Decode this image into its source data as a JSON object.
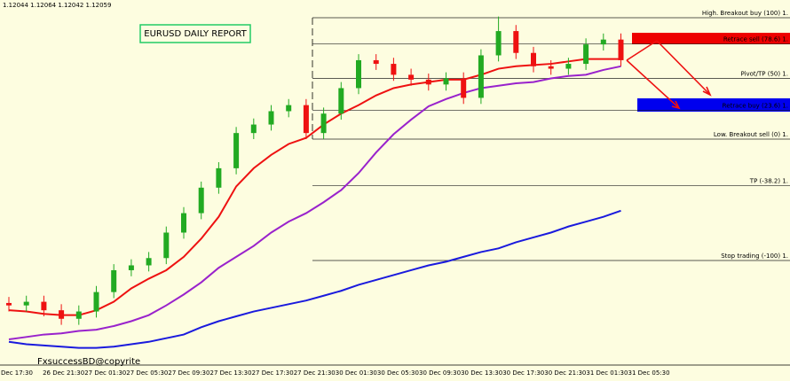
{
  "chart_data": {
    "type": "candlestick",
    "info": "1.12044 1.12064 1.12042 1.12059",
    "title": "EURUSD DAILY REPORT",
    "watermark": "FxsuccessBD@copyrite",
    "ylim": [
      -185.4,
      114.6
    ],
    "bull_color": "#22aa22",
    "bear_color": "#ee1111",
    "ohlc": {
      "open": [
        -135,
        -137,
        -134,
        -141,
        -148,
        -142,
        -126,
        -108,
        -104,
        -98,
        -77,
        -61,
        -40,
        -24,
        5,
        12,
        23,
        28,
        5,
        21,
        42,
        65,
        62,
        53,
        49,
        45,
        50,
        34,
        69,
        89,
        71,
        60,
        58,
        62,
        78,
        82
      ],
      "high": [
        -130,
        -129,
        -129,
        -136,
        -137,
        -121,
        -103,
        -99,
        -93,
        -72,
        -56,
        -35,
        -19,
        10,
        17,
        28,
        33,
        33,
        26,
        47,
        70,
        70,
        67,
        58,
        54,
        55,
        55,
        74,
        101,
        94,
        76,
        65,
        67,
        83,
        87,
        87
      ],
      "low": [
        -142,
        -142,
        -146,
        -153,
        -153,
        -147,
        -131,
        -113,
        -109,
        -103,
        -82,
        -66,
        -45,
        -29,
        0,
        7,
        18,
        0,
        0,
        16,
        37,
        57,
        48,
        44,
        40,
        40,
        29,
        29,
        64,
        66,
        55,
        53,
        53,
        57,
        73,
        60
      ],
      "close": [
        -137,
        -134,
        -141,
        -148,
        -142,
        -126,
        -108,
        -104,
        -98,
        -77,
        -61,
        -40,
        -24,
        5,
        12,
        23,
        28,
        5,
        21,
        42,
        65,
        62,
        53,
        49,
        45,
        50,
        34,
        69,
        89,
        71,
        60,
        58,
        62,
        78,
        82,
        65
      ]
    },
    "lines": [
      {
        "color": "#ee1111",
        "values": [
          -141,
          -142,
          -144,
          -145,
          -145,
          -141,
          -134,
          -123,
          -115,
          -108,
          -97,
          -82,
          -64,
          -39,
          -24,
          -13,
          -4,
          1,
          12,
          21,
          28,
          36,
          42,
          45,
          47,
          49,
          49,
          53,
          58,
          60,
          61,
          62,
          64,
          66,
          66,
          66
        ]
      },
      {
        "color": "#9922cc",
        "values": [
          -165,
          -163,
          -161,
          -160,
          -158,
          -157,
          -154,
          -150,
          -145,
          -137,
          -128,
          -118,
          -106,
          -97,
          -88,
          -77,
          -68,
          -61,
          -52,
          -42,
          -28,
          -11,
          4,
          16,
          27,
          33,
          38,
          42,
          44,
          46,
          47,
          50,
          52,
          53,
          57,
          60
        ]
      },
      {
        "color": "#1a1add",
        "values": [
          -167,
          -169,
          -170,
          -171,
          -172,
          -172,
          -171,
          -169,
          -167,
          -164,
          -161,
          -155,
          -150,
          -146,
          -142,
          -139,
          -136,
          -133,
          -129,
          -125,
          -120,
          -116,
          -112,
          -108,
          -104,
          -101,
          -97,
          -93,
          -90,
          -85,
          -81,
          -77,
          -72,
          -68,
          -64,
          -59
        ]
      }
    ],
    "levels": [
      {
        "value": 100,
        "label": "High. Breakout buy (100)  1."
      },
      {
        "value": 78.6,
        "label": "Retrace sell (78.6)  1."
      },
      {
        "value": 50,
        "label": "Pivot/TP (50)  1."
      },
      {
        "value": 23.6,
        "label": "Retrace buy (23.6)  1."
      },
      {
        "value": 0,
        "label": "Low. Breakout sell (0)  1."
      },
      {
        "value": -38.2,
        "label": "TP (-38.2)  1."
      },
      {
        "value": -100,
        "label": "Stop trading (-100)  1."
      }
    ],
    "xlabels": [
      "Dec 17:30",
      "26 Dec 21:30",
      "27 Dec 01:30",
      "27 Dec 05:30",
      "27 Dec 09:30",
      "27 Dec 13:30",
      "27 Dec 17:30",
      "27 Dec 21:30",
      "30 Dec 01:30",
      "30 Dec 05:30",
      "30 Dec 09:30",
      "30 Dec 13:30",
      "30 Dec 17:30",
      "30 Dec 21:30",
      "31 Dec 01:30",
      "31 Dec 05:30"
    ]
  }
}
